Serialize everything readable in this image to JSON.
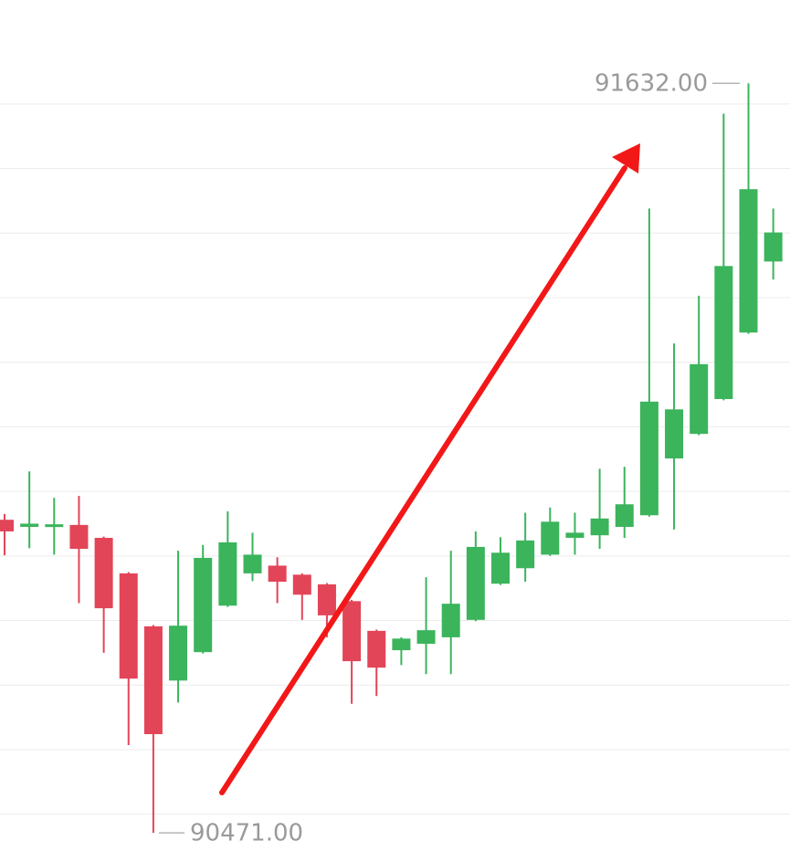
{
  "chart_data": {
    "type": "candlestick",
    "open": [
      90956,
      90945,
      90946,
      90948,
      90928,
      90873,
      90791,
      90707,
      90751,
      90823,
      90873,
      90885,
      90871,
      90856,
      90830,
      90784,
      90754,
      90764,
      90774,
      90801,
      90857,
      90881,
      90902,
      90928,
      90932,
      90945,
      90963,
      91051,
      91089,
      91143,
      91246,
      91356
    ],
    "high": [
      90965,
      91031,
      90990,
      90993,
      90930,
      90875,
      90793,
      90908,
      90917,
      90969,
      90936,
      90898,
      90873,
      90858,
      90832,
      90786,
      90774,
      90867,
      90908,
      90938,
      90929,
      90967,
      90975,
      90967,
      91035,
      91038,
      91438,
      91229,
      91303,
      91585,
      91632,
      91438
    ],
    "low": [
      90901,
      90912,
      90902,
      90827,
      90750,
      90607,
      90471,
      90673,
      90749,
      90821,
      90861,
      90827,
      90801,
      90774,
      90671,
      90683,
      90731,
      90717,
      90717,
      90799,
      90855,
      90860,
      90900,
      90902,
      90911,
      90928,
      90961,
      90941,
      91087,
      91141,
      91244,
      91328
    ],
    "close": [
      90938,
      90950,
      90949,
      90911,
      90819,
      90710,
      90624,
      90792,
      90897,
      90921,
      90902,
      90860,
      90840,
      90808,
      90737,
      90727,
      90772,
      90785,
      90826,
      90914,
      90905,
      90924,
      90953,
      90936,
      90958,
      90980,
      91139,
      91127,
      91197,
      91349,
      91468,
      91401
    ],
    "up_color": "#3bb45c",
    "down_color": "#e24557",
    "ylim": [
      90426,
      91761
    ],
    "yticks": [
      90500,
      90600,
      90700,
      90800,
      90900,
      91000,
      91100,
      91200,
      91300,
      91400,
      91500,
      91600
    ],
    "grid": true,
    "annotations": [
      {
        "text": "91632.00",
        "value": 91632
      },
      {
        "text": "90471.00",
        "value": 90471
      }
    ]
  }
}
